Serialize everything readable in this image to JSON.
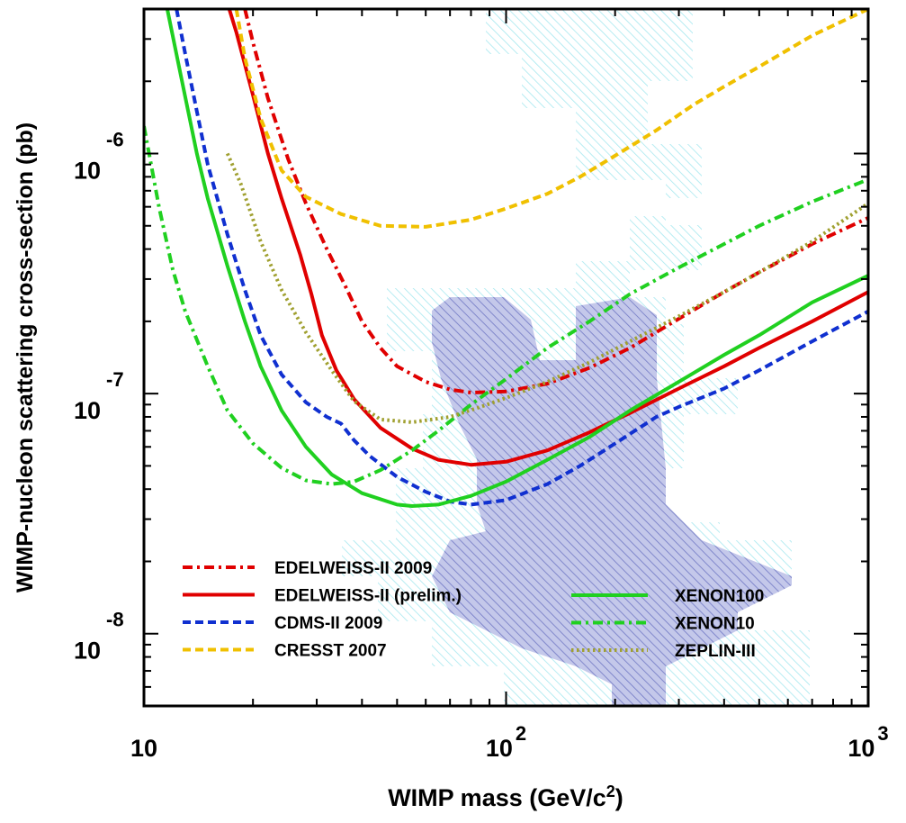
{
  "chart_data": {
    "type": "line",
    "xscale": "log",
    "yscale": "log",
    "xlim": [
      10,
      1000
    ],
    "ylim": [
      5e-09,
      4e-06
    ],
    "xlabel": {
      "text": "WIMP mass (GeV/c",
      "sup": "2",
      "tail": ")"
    },
    "ylabel": "WIMP-nucleon scattering cross-section (pb)",
    "x_ticks": [
      {
        "value": 10,
        "base": "10",
        "exp": ""
      },
      {
        "value": 100,
        "base": "10",
        "exp": "2"
      },
      {
        "value": 1000,
        "base": "10",
        "exp": "3"
      }
    ],
    "y_ticks": [
      {
        "value": 1e-06,
        "base": "10",
        "exp": "-6"
      },
      {
        "value": 1e-07,
        "base": "10",
        "exp": "-7"
      },
      {
        "value": 1e-08,
        "base": "10",
        "exp": "-8"
      }
    ],
    "series": [
      {
        "name": "EDELWEISS-II 2009",
        "color": "#e00000",
        "style": "dashdot",
        "legend_col": 0,
        "legend_row": 0,
        "points": [
          [
            19,
            4e-06
          ],
          [
            20,
            2.9e-06
          ],
          [
            22,
            1.7e-06
          ],
          [
            25,
            9.5e-07
          ],
          [
            28,
            6.2e-07
          ],
          [
            32,
            4e-07
          ],
          [
            36,
            2.8e-07
          ],
          [
            40,
            2e-07
          ],
          [
            45,
            1.55e-07
          ],
          [
            50,
            1.3e-07
          ],
          [
            60,
            1.12e-07
          ],
          [
            70,
            1.04e-07
          ],
          [
            80,
            1.01e-07
          ],
          [
            100,
            1.02e-07
          ],
          [
            130,
            1.1e-07
          ],
          [
            170,
            1.28e-07
          ],
          [
            220,
            1.55e-07
          ],
          [
            300,
            2.05e-07
          ],
          [
            400,
            2.65e-07
          ],
          [
            500,
            3.2e-07
          ],
          [
            700,
            4.2e-07
          ],
          [
            1000,
            5.4e-07
          ]
        ]
      },
      {
        "name": "EDELWEISS-II (prelim.)",
        "color": "#e00000",
        "style": "solid",
        "legend_col": 0,
        "legend_row": 1,
        "points": [
          [
            17.2,
            4e-06
          ],
          [
            18,
            3.2e-06
          ],
          [
            20,
            1.75e-06
          ],
          [
            22,
            1e-06
          ],
          [
            24,
            6.5e-07
          ],
          [
            27,
            3.8e-07
          ],
          [
            29,
            2.6e-07
          ],
          [
            31,
            1.75e-07
          ],
          [
            34,
            1.25e-07
          ],
          [
            38,
            9.5e-08
          ],
          [
            45,
            7.2e-08
          ],
          [
            55,
            5.9e-08
          ],
          [
            65,
            5.3e-08
          ],
          [
            80,
            5.05e-08
          ],
          [
            100,
            5.2e-08
          ],
          [
            130,
            5.8e-08
          ],
          [
            170,
            6.9e-08
          ],
          [
            220,
            8.3e-08
          ],
          [
            300,
            1.05e-07
          ],
          [
            400,
            1.3e-07
          ],
          [
            500,
            1.55e-07
          ],
          [
            700,
            2e-07
          ],
          [
            1000,
            2.65e-07
          ]
        ]
      },
      {
        "name": "CDMS-II 2009",
        "color": "#1030d0",
        "style": "dashed",
        "legend_col": 0,
        "legend_row": 2,
        "points": [
          [
            12.3,
            4e-06
          ],
          [
            13,
            2.6e-06
          ],
          [
            14,
            1.5e-06
          ],
          [
            15,
            9e-07
          ],
          [
            17,
            4.6e-07
          ],
          [
            19,
            2.7e-07
          ],
          [
            21,
            1.75e-07
          ],
          [
            24,
            1.2e-07
          ],
          [
            28,
            9.2e-08
          ],
          [
            32,
            8e-08
          ],
          [
            35,
            7.5e-08
          ],
          [
            38,
            6.4e-08
          ],
          [
            42,
            5.5e-08
          ],
          [
            50,
            4.5e-08
          ],
          [
            60,
            3.9e-08
          ],
          [
            70,
            3.55e-08
          ],
          [
            80,
            3.45e-08
          ],
          [
            100,
            3.6e-08
          ],
          [
            130,
            4.2e-08
          ],
          [
            160,
            5e-08
          ],
          [
            200,
            6.2e-08
          ],
          [
            260,
            8e-08
          ],
          [
            300,
            8.8e-08
          ],
          [
            400,
            1.05e-07
          ],
          [
            500,
            1.25e-07
          ],
          [
            700,
            1.65e-07
          ],
          [
            1000,
            2.2e-07
          ]
        ]
      },
      {
        "name": "CRESST 2007",
        "color": "#f0c000",
        "style": "dashed",
        "legend_col": 0,
        "legend_row": 3,
        "points": [
          [
            18,
            4e-06
          ],
          [
            19,
            2.5e-06
          ],
          [
            21,
            1.4e-06
          ],
          [
            24,
            8.5e-07
          ],
          [
            28,
            6.6e-07
          ],
          [
            35,
            5.6e-07
          ],
          [
            45,
            5e-07
          ],
          [
            60,
            4.95e-07
          ],
          [
            80,
            5.3e-07
          ],
          [
            100,
            5.9e-07
          ],
          [
            130,
            6.8e-07
          ],
          [
            160,
            8e-07
          ],
          [
            200,
            9.8e-07
          ],
          [
            260,
            1.25e-06
          ],
          [
            330,
            1.6e-06
          ],
          [
            400,
            1.9e-06
          ],
          [
            500,
            2.3e-06
          ],
          [
            700,
            3.1e-06
          ],
          [
            1000,
            4e-06
          ]
        ]
      },
      {
        "name": "XENON100",
        "color": "#20d020",
        "style": "solid",
        "legend_col": 1,
        "legend_row": 0,
        "points": [
          [
            11.6,
            4e-06
          ],
          [
            12.5,
            2.3e-06
          ],
          [
            14,
            1e-06
          ],
          [
            15,
            6.5e-07
          ],
          [
            17,
            3.4e-07
          ],
          [
            19,
            2e-07
          ],
          [
            21,
            1.3e-07
          ],
          [
            24,
            8.5e-08
          ],
          [
            28,
            6e-08
          ],
          [
            33,
            4.6e-08
          ],
          [
            40,
            3.85e-08
          ],
          [
            50,
            3.45e-08
          ],
          [
            55,
            3.4e-08
          ],
          [
            65,
            3.45e-08
          ],
          [
            80,
            3.75e-08
          ],
          [
            100,
            4.3e-08
          ],
          [
            130,
            5.3e-08
          ],
          [
            170,
            6.6e-08
          ],
          [
            220,
            8.5e-08
          ],
          [
            300,
            1.12e-07
          ],
          [
            400,
            1.45e-07
          ],
          [
            500,
            1.75e-07
          ],
          [
            700,
            2.4e-07
          ],
          [
            1000,
            3.1e-07
          ]
        ]
      },
      {
        "name": "XENON10",
        "color": "#20d020",
        "style": "dashdot",
        "legend_col": 1,
        "legend_row": 1,
        "points": [
          [
            10,
            1.3e-06
          ],
          [
            11,
            6e-07
          ],
          [
            12,
            3.3e-07
          ],
          [
            13,
            2.2e-07
          ],
          [
            15,
            1.3e-07
          ],
          [
            17,
            8.5e-08
          ],
          [
            20,
            6.2e-08
          ],
          [
            24,
            4.9e-08
          ],
          [
            28,
            4.35e-08
          ],
          [
            33,
            4.2e-08
          ],
          [
            38,
            4.3e-08
          ],
          [
            45,
            4.8e-08
          ],
          [
            55,
            5.8e-08
          ],
          [
            65,
            7e-08
          ],
          [
            80,
            9e-08
          ],
          [
            100,
            1.15e-07
          ],
          [
            130,
            1.55e-07
          ],
          [
            170,
            2e-07
          ],
          [
            220,
            2.6e-07
          ],
          [
            300,
            3.35e-07
          ],
          [
            400,
            4.2e-07
          ],
          [
            500,
            5e-07
          ],
          [
            700,
            6.3e-07
          ],
          [
            1000,
            7.8e-07
          ]
        ]
      },
      {
        "name": "ZEPLIN-III",
        "color": "#a0a030",
        "style": "dotted",
        "legend_col": 1,
        "legend_row": 2,
        "points": [
          [
            17,
            1e-06
          ],
          [
            18.5,
            7.5e-07
          ],
          [
            21,
            4.3e-07
          ],
          [
            24,
            2.7e-07
          ],
          [
            28,
            1.8e-07
          ],
          [
            33,
            1.25e-07
          ],
          [
            38,
            9.3e-08
          ],
          [
            45,
            7.8e-08
          ],
          [
            55,
            7.6e-08
          ],
          [
            70,
            8e-08
          ],
          [
            85,
            8.8e-08
          ],
          [
            100,
            9.6e-08
          ],
          [
            130,
            1.12e-07
          ],
          [
            170,
            1.35e-07
          ],
          [
            220,
            1.65e-07
          ],
          [
            300,
            2.1e-07
          ],
          [
            400,
            2.65e-07
          ],
          [
            500,
            3.2e-07
          ],
          [
            700,
            4.3e-07
          ],
          [
            1000,
            6.2e-07
          ]
        ]
      }
    ]
  }
}
